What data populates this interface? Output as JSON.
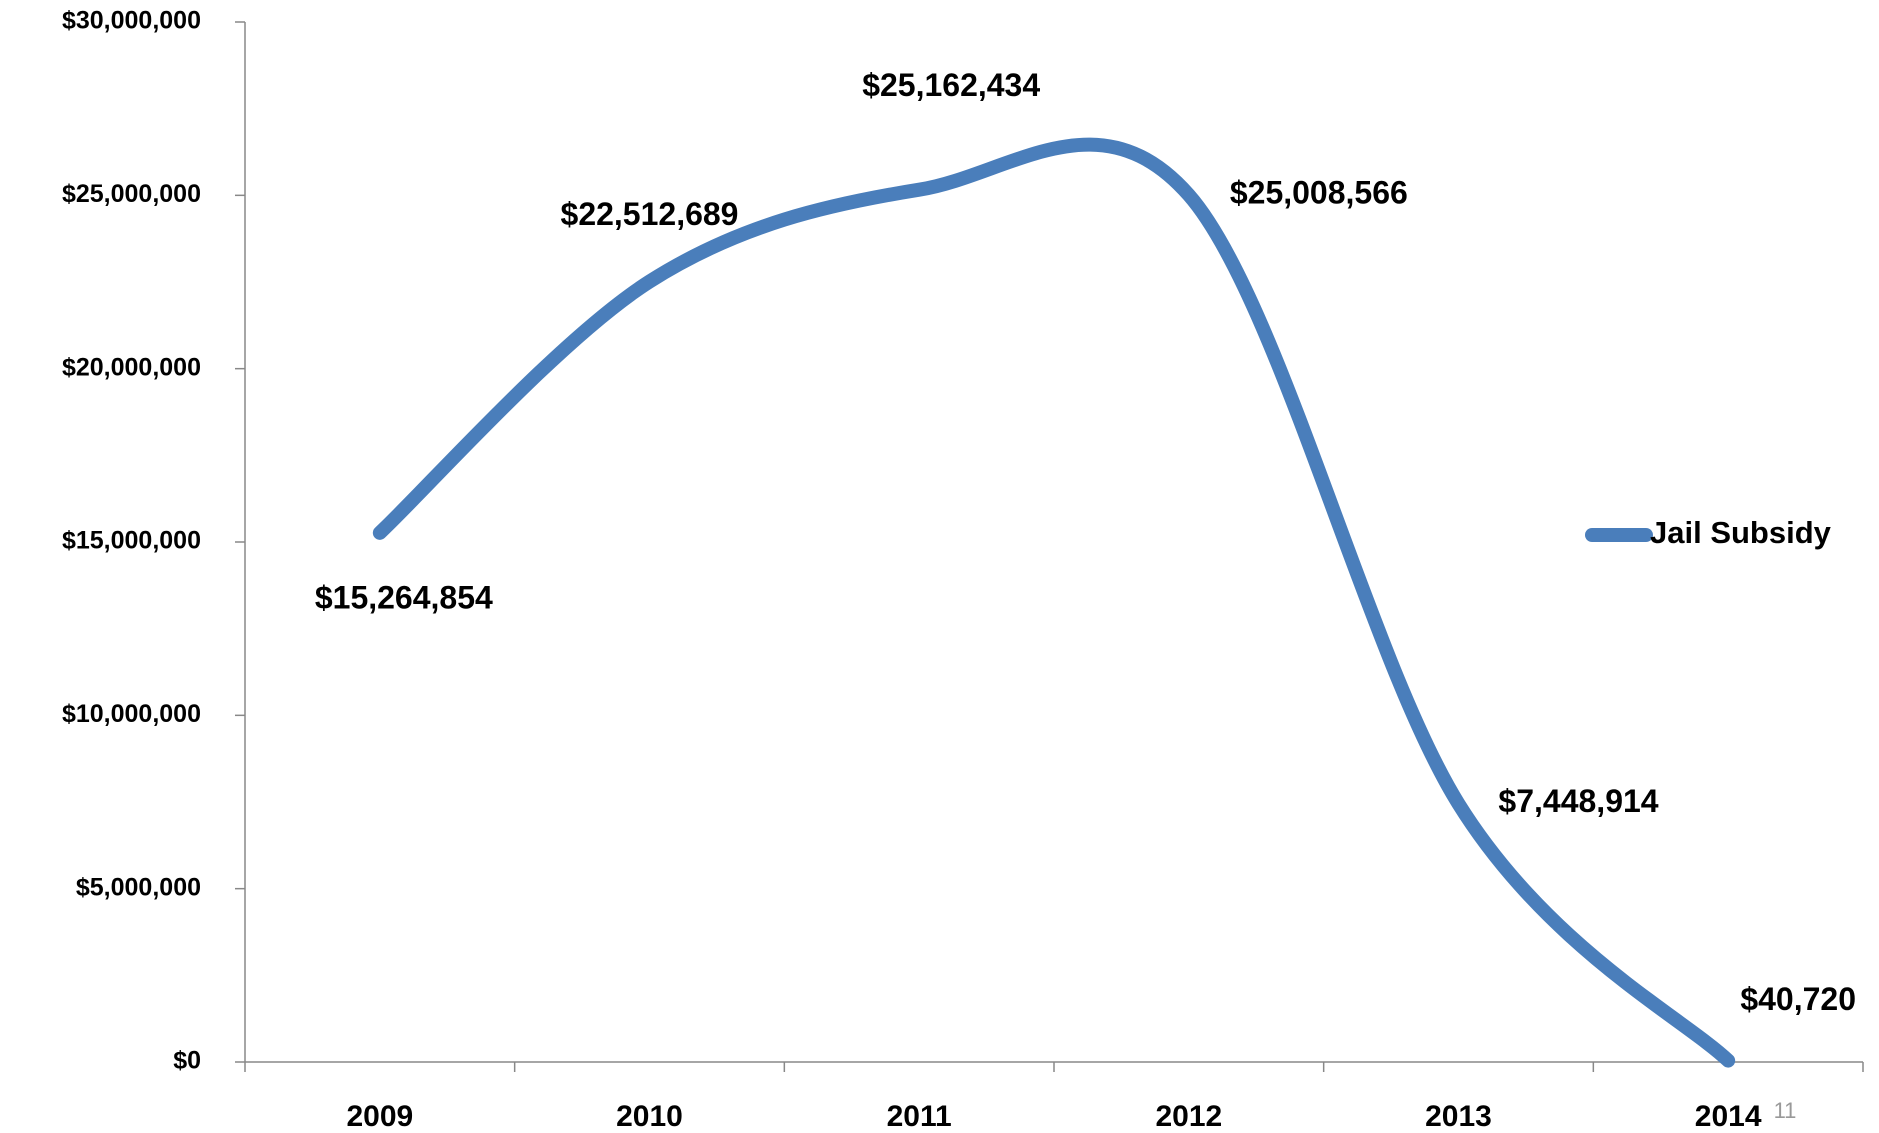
{
  "chart_data": {
    "type": "line",
    "categories": [
      "2009",
      "2010",
      "2011",
      "2012",
      "2013",
      "2014"
    ],
    "series": [
      {
        "name": "Jail Subsidy",
        "color": "#4a7ebb",
        "values": [
          15264854,
          22512689,
          25162434,
          25008566,
          7448914,
          40720
        ],
        "value_labels": [
          "$15,264,854",
          "$22,512,689",
          "$25,162,434",
          "$25,008,566",
          "$7,448,914",
          "$40,720"
        ]
      }
    ],
    "ylim": [
      0,
      30000000
    ],
    "yticks": [
      {
        "value": 0,
        "label": "$0"
      },
      {
        "value": 5000000,
        "label": "$5,000,000"
      },
      {
        "value": 10000000,
        "label": "$10,000,000"
      },
      {
        "value": 15000000,
        "label": "$15,000,000"
      },
      {
        "value": 20000000,
        "label": "$20,000,000"
      },
      {
        "value": 25000000,
        "label": "$25,000,000"
      },
      {
        "value": 30000000,
        "label": "$30,000,000"
      }
    ],
    "grid": false,
    "smooth": true,
    "legend": "right"
  },
  "page_number": "11"
}
